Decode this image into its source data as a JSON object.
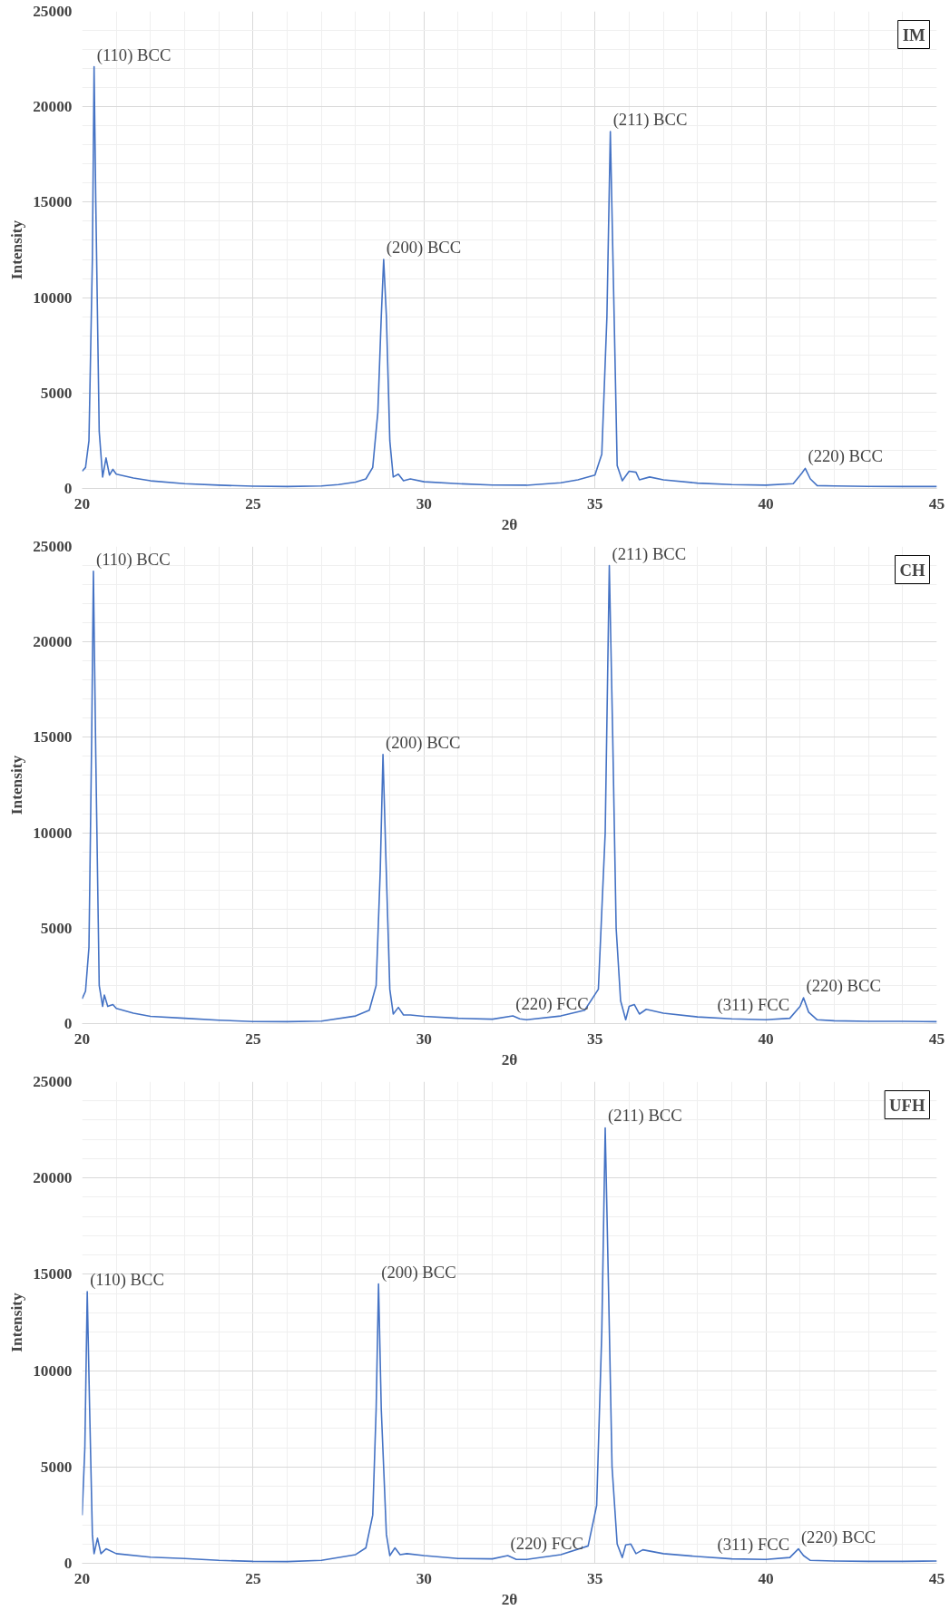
{
  "chart_data": [
    {
      "type": "line",
      "title": "IM",
      "xlabel": "2θ",
      "ylabel": "Intensity",
      "xlim": [
        20,
        45
      ],
      "ylim": [
        0,
        25000
      ],
      "xticks": [
        20,
        25,
        30,
        35,
        40,
        45
      ],
      "yticks": [
        0,
        5000,
        10000,
        15000,
        20000,
        25000
      ],
      "grid": true,
      "marker": "none",
      "line_style": "solid",
      "x": [
        20,
        20.1,
        20.2,
        20.3,
        20.35,
        20.4,
        20.5,
        20.6,
        20.7,
        20.8,
        20.9,
        21,
        21.5,
        22,
        23,
        24,
        25,
        26,
        27,
        27.5,
        28,
        28.3,
        28.5,
        28.65,
        28.75,
        28.82,
        28.9,
        29,
        29.1,
        29.25,
        29.4,
        29.6,
        30,
        31,
        32,
        33,
        34,
        34.5,
        35,
        35.2,
        35.35,
        35.45,
        35.55,
        35.65,
        35.8,
        36,
        36.2,
        36.3,
        36.6,
        37,
        38,
        39,
        40,
        40.8,
        41.05,
        41.15,
        41.3,
        41.5,
        42,
        43,
        44,
        45
      ],
      "series": [
        {
          "color": "#4472c4",
          "values": [
            900,
            1100,
            2500,
            12000,
            22100,
            15000,
            3000,
            600,
            1600,
            700,
            1000,
            750,
            550,
            400,
            250,
            170,
            120,
            100,
            130,
            200,
            330,
            500,
            1100,
            4000,
            9000,
            12000,
            9000,
            2500,
            600,
            750,
            400,
            500,
            350,
            250,
            180,
            170,
            300,
            450,
            700,
            1800,
            9000,
            18700,
            10000,
            1200,
            400,
            900,
            850,
            450,
            600,
            450,
            280,
            200,
            170,
            250,
            800,
            1050,
            500,
            150,
            130,
            110,
            100,
            100
          ]
        }
      ],
      "annotations": [
        {
          "text": "(110) BCC",
          "x": 20.35,
          "y": 22100
        },
        {
          "text": "(200) BCC",
          "x": 28.82,
          "y": 12000
        },
        {
          "text": "(211) BCC",
          "x": 35.45,
          "y": 18700
        },
        {
          "text": "(220) BCC",
          "x": 41.15,
          "y": 1050
        }
      ]
    },
    {
      "type": "line",
      "title": "CH",
      "xlabel": "2θ",
      "ylabel": "Intensity",
      "xlim": [
        20,
        45
      ],
      "ylim": [
        0,
        25000
      ],
      "xticks": [
        20,
        25,
        30,
        35,
        40,
        45
      ],
      "yticks": [
        0,
        5000,
        10000,
        15000,
        20000,
        25000
      ],
      "grid": true,
      "marker": "none",
      "line_style": "solid",
      "x": [
        20,
        20.1,
        20.2,
        20.28,
        20.33,
        20.4,
        20.5,
        20.6,
        20.65,
        20.75,
        20.9,
        21,
        21.5,
        22,
        23,
        24,
        25,
        26,
        27,
        28,
        28.4,
        28.6,
        28.72,
        28.8,
        28.88,
        29,
        29.1,
        29.25,
        29.4,
        29.6,
        30,
        31,
        32,
        32.6,
        32.8,
        33,
        34,
        34.7,
        35.1,
        35.3,
        35.42,
        35.52,
        35.62,
        35.75,
        35.9,
        36,
        36.15,
        36.3,
        36.5,
        37,
        38,
        39,
        40,
        40.7,
        41,
        41.1,
        41.25,
        41.5,
        42,
        43,
        44,
        45
      ],
      "series": [
        {
          "color": "#4472c4",
          "values": [
            1300,
            1700,
            4000,
            15000,
            23700,
            14000,
            2000,
            900,
            1500,
            900,
            1000,
            800,
            550,
            380,
            280,
            180,
            110,
            100,
            130,
            400,
            700,
            2000,
            8000,
            14100,
            9000,
            1800,
            500,
            850,
            450,
            450,
            380,
            280,
            230,
            400,
            250,
            200,
            400,
            700,
            1800,
            10000,
            24000,
            15000,
            5000,
            1200,
            200,
            900,
            1000,
            500,
            750,
            550,
            350,
            250,
            200,
            280,
            900,
            1350,
            600,
            200,
            150,
            120,
            120,
            100
          ]
        }
      ],
      "annotations": [
        {
          "text": "(110) BCC",
          "x": 20.33,
          "y": 23700
        },
        {
          "text": "(200) BCC",
          "x": 28.8,
          "y": 14100
        },
        {
          "text": "(211) BCC",
          "x": 35.42,
          "y": 24000
        },
        {
          "text": "(220) FCC",
          "x": 32.6,
          "y": 400
        },
        {
          "text": "(311) FCC",
          "x": 38.5,
          "y": 350
        },
        {
          "text": "(220) BCC",
          "x": 41.1,
          "y": 1350
        }
      ]
    },
    {
      "type": "line",
      "title": "UFH",
      "xlabel": "2θ",
      "ylabel": "Intensity",
      "xlim": [
        20,
        45
      ],
      "ylim": [
        0,
        25000
      ],
      "xticks": [
        20,
        25,
        30,
        35,
        40,
        45
      ],
      "yticks": [
        0,
        5000,
        10000,
        15000,
        20000,
        25000
      ],
      "grid": true,
      "marker": "none",
      "line_style": "solid",
      "x": [
        20,
        20.08,
        20.15,
        20.22,
        20.3,
        20.35,
        20.45,
        20.55,
        20.7,
        21,
        22,
        23,
        24,
        25,
        26,
        27,
        28,
        28.3,
        28.5,
        28.6,
        28.67,
        28.75,
        28.9,
        29,
        29.15,
        29.3,
        29.5,
        30,
        31,
        32,
        32.45,
        32.7,
        33,
        34,
        34.8,
        35.05,
        35.2,
        35.3,
        35.4,
        35.5,
        35.65,
        35.8,
        35.9,
        36.05,
        36.2,
        36.4,
        37,
        38,
        39,
        40,
        40.7,
        40.95,
        41.1,
        41.3,
        42,
        43,
        44,
        45
      ],
      "series": [
        {
          "color": "#4472c4",
          "values": [
            2500,
            6000,
            14100,
            8000,
            1500,
            500,
            1300,
            500,
            750,
            500,
            320,
            250,
            150,
            100,
            90,
            150,
            450,
            800,
            2500,
            8000,
            14500,
            8000,
            1500,
            400,
            800,
            450,
            500,
            400,
            250,
            230,
            400,
            200,
            200,
            450,
            900,
            3000,
            12000,
            22600,
            14000,
            5000,
            1000,
            300,
            950,
            1000,
            500,
            700,
            500,
            350,
            230,
            200,
            300,
            750,
            400,
            150,
            120,
            100,
            100,
            120
          ]
        }
      ],
      "annotations": [
        {
          "text": "(110) BCC",
          "x": 20.15,
          "y": 14100
        },
        {
          "text": "(200) BCC",
          "x": 28.67,
          "y": 14500
        },
        {
          "text": "(211) BCC",
          "x": 35.3,
          "y": 22600
        },
        {
          "text": "(220) FCC",
          "x": 32.45,
          "y": 400
        },
        {
          "text": "(311) FCC",
          "x": 38.5,
          "y": 350
        },
        {
          "text": "(220) BCC",
          "x": 40.95,
          "y": 750
        }
      ]
    }
  ]
}
